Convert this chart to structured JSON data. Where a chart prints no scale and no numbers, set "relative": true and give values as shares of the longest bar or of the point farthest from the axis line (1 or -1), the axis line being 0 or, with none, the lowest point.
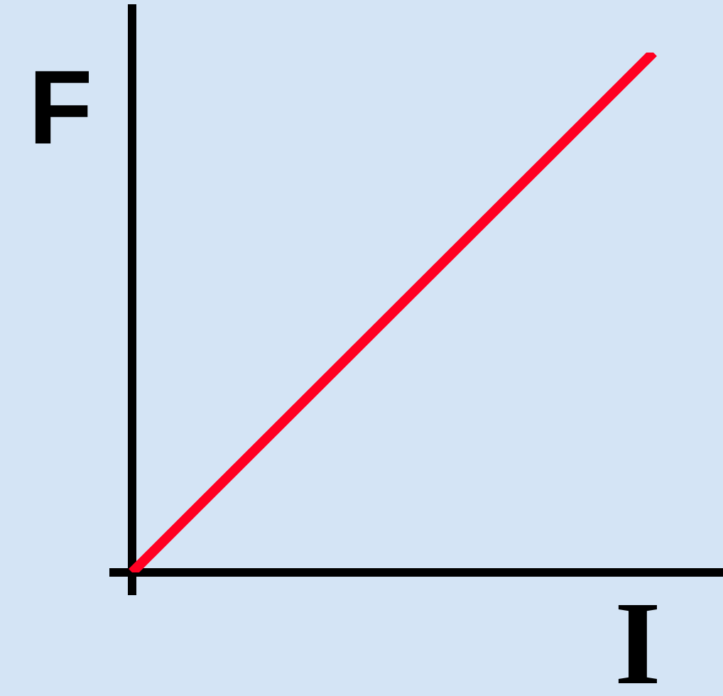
{
  "chart_data": {
    "type": "line",
    "xlabel": "I",
    "ylabel": "F",
    "categories": [
      null,
      null
    ],
    "relative": true,
    "series": [
      {
        "color": "#ff0022",
        "values": [
          0,
          1
        ]
      }
    ]
  }
}
